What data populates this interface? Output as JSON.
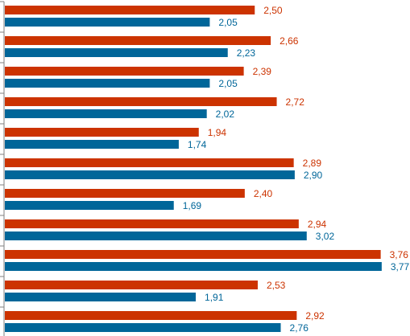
{
  "chart_data": {
    "type": "bar",
    "orientation": "horizontal",
    "categories": [
      "",
      "",
      "",
      "",
      "",
      "",
      "",
      "",
      "",
      "",
      ""
    ],
    "series": [
      {
        "color": "#cc3300",
        "values": [
          2.5,
          2.66,
          2.39,
          2.72,
          1.94,
          2.89,
          2.4,
          2.94,
          3.76,
          2.53,
          2.92
        ],
        "labels": [
          "2,50",
          "2,66",
          "2,39",
          "2,72",
          "1,94",
          "2,89",
          "2,40",
          "2,94",
          "3,76",
          "2,53",
          "2,92"
        ]
      },
      {
        "color": "#006699",
        "values": [
          2.05,
          2.23,
          2.05,
          2.02,
          1.74,
          2.9,
          1.69,
          3.02,
          3.77,
          1.91,
          2.76
        ],
        "labels": [
          "2,05",
          "2,23",
          "2,05",
          "2,02",
          "1,74",
          "2,90",
          "1,69",
          "3,02",
          "3,77",
          "1,91",
          "2,76"
        ]
      }
    ],
    "xlim": [
      0,
      4.2
    ],
    "grid": false,
    "legend": "none"
  }
}
